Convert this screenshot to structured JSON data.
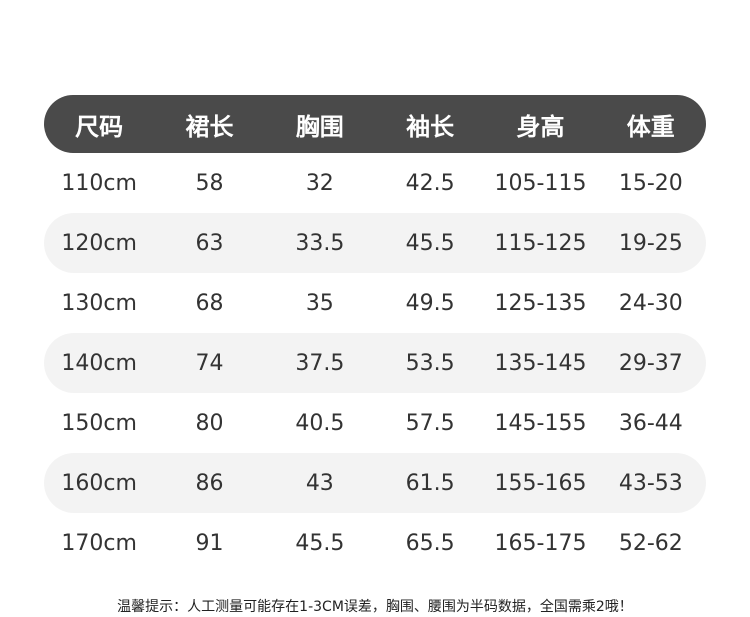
{
  "table": {
    "header": [
      "尺码",
      "裙长",
      "胸围",
      "袖长",
      "身高",
      "体重"
    ],
    "rows": [
      [
        "110cm",
        "58",
        "32",
        "42.5",
        "105-115",
        "15-20"
      ],
      [
        "120cm",
        "63",
        "33.5",
        "45.5",
        "115-125",
        "19-25"
      ],
      [
        "130cm",
        "68",
        "35",
        "49.5",
        "125-135",
        "24-30"
      ],
      [
        "140cm",
        "74",
        "37.5",
        "53.5",
        "135-145",
        "29-37"
      ],
      [
        "150cm",
        "80",
        "40.5",
        "57.5",
        "145-155",
        "36-44"
      ],
      [
        "160cm",
        "86",
        "43",
        "61.5",
        "155-165",
        "43-53"
      ],
      [
        "170cm",
        "91",
        "45.5",
        "65.5",
        "165-175",
        "52-62"
      ]
    ]
  },
  "note": "温馨提示：人工测量可能存在1-3CM误差，胸围、腰围为半码数据，全国需乘2哦！"
}
